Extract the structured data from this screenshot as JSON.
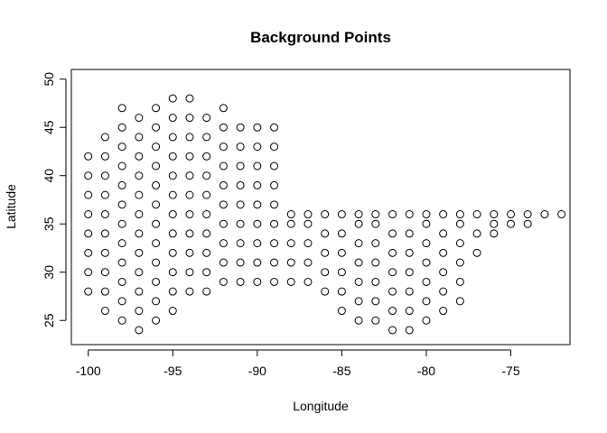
{
  "chart_data": {
    "type": "scatter",
    "title": "Background Points",
    "xlabel": "Longitude",
    "ylabel": "Latitude",
    "xlim": [
      -101,
      -71.5
    ],
    "ylim": [
      22.5,
      51
    ],
    "x_ticks": [
      -100,
      -95,
      -90,
      -85,
      -80,
      -75
    ],
    "x_tick_labels": [
      "-100",
      "-95",
      "-90",
      "-85",
      "-80",
      "-75"
    ],
    "y_ticks": [
      25,
      30,
      35,
      40,
      45,
      50
    ],
    "y_tick_labels": [
      "25",
      "30",
      "35",
      "40",
      "45",
      "50"
    ],
    "grid": false,
    "marker": "open-circle",
    "point_color": "#000000",
    "series": [
      {
        "points": [
          [
            -100,
            28
          ],
          [
            -100,
            30
          ],
          [
            -100,
            32
          ],
          [
            -100,
            34
          ],
          [
            -100,
            36
          ],
          [
            -100,
            38
          ],
          [
            -100,
            40
          ],
          [
            -100,
            42
          ],
          [
            -99,
            26
          ],
          [
            -99,
            28
          ],
          [
            -99,
            30
          ],
          [
            -99,
            32
          ],
          [
            -99,
            34
          ],
          [
            -99,
            36
          ],
          [
            -99,
            38
          ],
          [
            -99,
            40
          ],
          [
            -99,
            42
          ],
          [
            -99,
            44
          ],
          [
            -98,
            25
          ],
          [
            -98,
            27
          ],
          [
            -98,
            29
          ],
          [
            -98,
            31
          ],
          [
            -98,
            33
          ],
          [
            -98,
            35
          ],
          [
            -98,
            37
          ],
          [
            -98,
            39
          ],
          [
            -98,
            41
          ],
          [
            -98,
            43
          ],
          [
            -98,
            45
          ],
          [
            -98,
            47
          ],
          [
            -97,
            24
          ],
          [
            -97,
            26
          ],
          [
            -97,
            28
          ],
          [
            -97,
            30
          ],
          [
            -97,
            32
          ],
          [
            -97,
            34
          ],
          [
            -97,
            36
          ],
          [
            -97,
            38
          ],
          [
            -97,
            40
          ],
          [
            -97,
            42
          ],
          [
            -97,
            44
          ],
          [
            -97,
            46
          ],
          [
            -96,
            25
          ],
          [
            -96,
            27
          ],
          [
            -96,
            29
          ],
          [
            -96,
            31
          ],
          [
            -96,
            33
          ],
          [
            -96,
            35
          ],
          [
            -96,
            37
          ],
          [
            -96,
            39
          ],
          [
            -96,
            41
          ],
          [
            -96,
            43
          ],
          [
            -96,
            45
          ],
          [
            -96,
            47
          ],
          [
            -95,
            26
          ],
          [
            -95,
            28
          ],
          [
            -95,
            30
          ],
          [
            -95,
            32
          ],
          [
            -95,
            34
          ],
          [
            -95,
            36
          ],
          [
            -95,
            38
          ],
          [
            -95,
            40
          ],
          [
            -95,
            42
          ],
          [
            -95,
            44
          ],
          [
            -95,
            46
          ],
          [
            -95,
            48
          ],
          [
            -94,
            28
          ],
          [
            -94,
            30
          ],
          [
            -94,
            32
          ],
          [
            -94,
            34
          ],
          [
            -94,
            36
          ],
          [
            -94,
            38
          ],
          [
            -94,
            40
          ],
          [
            -94,
            42
          ],
          [
            -94,
            44
          ],
          [
            -94,
            46
          ],
          [
            -94,
            48
          ],
          [
            -93,
            28
          ],
          [
            -93,
            30
          ],
          [
            -93,
            32
          ],
          [
            -93,
            34
          ],
          [
            -93,
            36
          ],
          [
            -93,
            38
          ],
          [
            -93,
            40
          ],
          [
            -93,
            42
          ],
          [
            -93,
            44
          ],
          [
            -93,
            46
          ],
          [
            -92,
            29
          ],
          [
            -92,
            31
          ],
          [
            -92,
            33
          ],
          [
            -92,
            35
          ],
          [
            -92,
            37
          ],
          [
            -92,
            39
          ],
          [
            -92,
            41
          ],
          [
            -92,
            43
          ],
          [
            -92,
            45
          ],
          [
            -92,
            47
          ],
          [
            -91,
            29
          ],
          [
            -91,
            31
          ],
          [
            -91,
            33
          ],
          [
            -91,
            35
          ],
          [
            -91,
            37
          ],
          [
            -91,
            39
          ],
          [
            -91,
            41
          ],
          [
            -91,
            43
          ],
          [
            -91,
            45
          ],
          [
            -90,
            29
          ],
          [
            -90,
            31
          ],
          [
            -90,
            33
          ],
          [
            -90,
            35
          ],
          [
            -90,
            37
          ],
          [
            -90,
            39
          ],
          [
            -90,
            41
          ],
          [
            -90,
            43
          ],
          [
            -90,
            45
          ],
          [
            -89,
            29
          ],
          [
            -89,
            31
          ],
          [
            -89,
            33
          ],
          [
            -89,
            35
          ],
          [
            -89,
            37
          ],
          [
            -89,
            39
          ],
          [
            -89,
            41
          ],
          [
            -89,
            43
          ],
          [
            -89,
            45
          ],
          [
            -88,
            29
          ],
          [
            -88,
            31
          ],
          [
            -88,
            33
          ],
          [
            -88,
            35
          ],
          [
            -88,
            36
          ],
          [
            -87,
            29
          ],
          [
            -87,
            31
          ],
          [
            -87,
            33
          ],
          [
            -87,
            35
          ],
          [
            -87,
            36
          ],
          [
            -86,
            28
          ],
          [
            -86,
            30
          ],
          [
            -86,
            32
          ],
          [
            -86,
            34
          ],
          [
            -86,
            36
          ],
          [
            -85,
            26
          ],
          [
            -85,
            28
          ],
          [
            -85,
            30
          ],
          [
            -85,
            32
          ],
          [
            -85,
            34
          ],
          [
            -85,
            36
          ],
          [
            -84,
            25
          ],
          [
            -84,
            27
          ],
          [
            -84,
            29
          ],
          [
            -84,
            31
          ],
          [
            -84,
            33
          ],
          [
            -84,
            35
          ],
          [
            -84,
            36
          ],
          [
            -83,
            25
          ],
          [
            -83,
            27
          ],
          [
            -83,
            29
          ],
          [
            -83,
            31
          ],
          [
            -83,
            33
          ],
          [
            -83,
            35
          ],
          [
            -83,
            36
          ],
          [
            -82,
            24
          ],
          [
            -82,
            26
          ],
          [
            -82,
            28
          ],
          [
            -82,
            30
          ],
          [
            -82,
            32
          ],
          [
            -82,
            34
          ],
          [
            -82,
            36
          ],
          [
            -81,
            24
          ],
          [
            -81,
            26
          ],
          [
            -81,
            28
          ],
          [
            -81,
            30
          ],
          [
            -81,
            32
          ],
          [
            -81,
            34
          ],
          [
            -81,
            36
          ],
          [
            -80,
            25
          ],
          [
            -80,
            27
          ],
          [
            -80,
            29
          ],
          [
            -80,
            31
          ],
          [
            -80,
            33
          ],
          [
            -80,
            35
          ],
          [
            -80,
            36
          ],
          [
            -79,
            26
          ],
          [
            -79,
            28
          ],
          [
            -79,
            30
          ],
          [
            -79,
            32
          ],
          [
            -79,
            34
          ],
          [
            -79,
            36
          ],
          [
            -78,
            27
          ],
          [
            -78,
            29
          ],
          [
            -78,
            31
          ],
          [
            -78,
            33
          ],
          [
            -78,
            35
          ],
          [
            -78,
            36
          ],
          [
            -77,
            32
          ],
          [
            -77,
            34
          ],
          [
            -77,
            36
          ],
          [
            -76,
            34
          ],
          [
            -76,
            35
          ],
          [
            -76,
            36
          ],
          [
            -75,
            35
          ],
          [
            -75,
            36
          ],
          [
            -74,
            35
          ],
          [
            -74,
            36
          ],
          [
            -73,
            36
          ],
          [
            -72,
            36
          ]
        ]
      }
    ]
  }
}
